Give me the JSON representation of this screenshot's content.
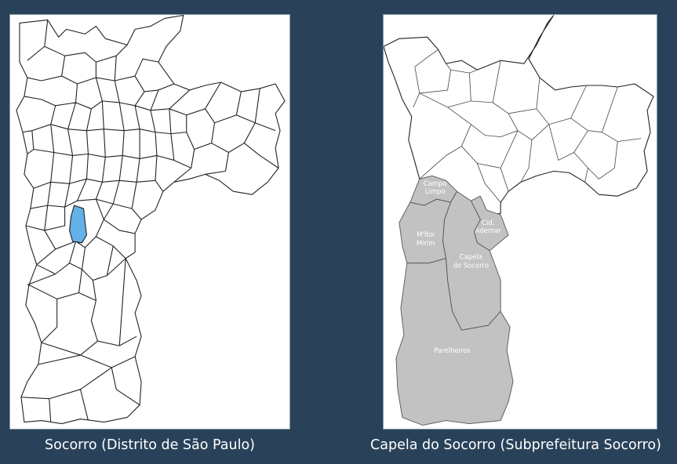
{
  "left_map": {
    "caption": "Socorro (Distrito de São Paulo)",
    "highlight_color": "#63b1e8"
  },
  "right_map": {
    "caption": "Capela do Socorro (Subprefeitura Socorro)",
    "region_fill": "#c2c2c2",
    "labels": {
      "campo_limpo_1": "Campo",
      "campo_limpo_2": "Limpo",
      "cid_ademar_1": "Cid.",
      "cid_ademar_2": "Ademar",
      "mboi_mirim_1": "M'Boi",
      "mboi_mirim_2": "Mirim",
      "capela_1": "Capela",
      "capela_2": "do Socorro",
      "parelheiros": "Parelheiros"
    }
  }
}
